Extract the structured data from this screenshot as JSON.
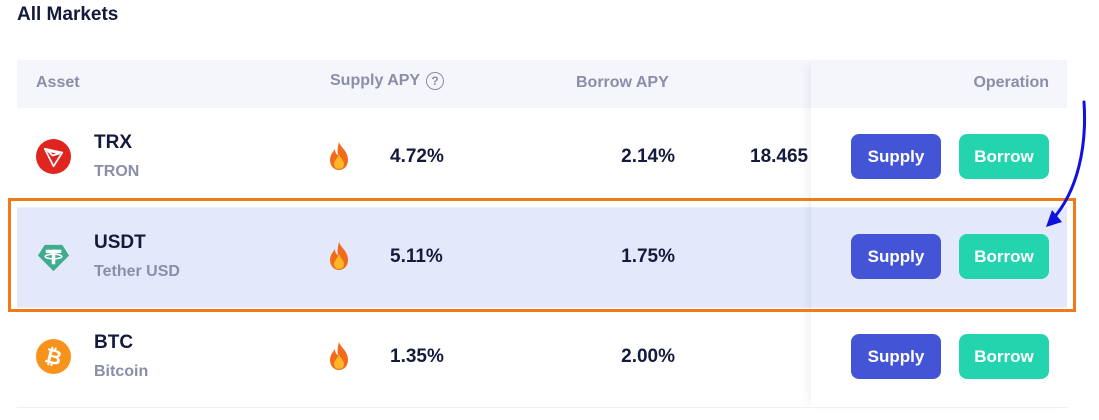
{
  "page": {
    "title": "All Markets"
  },
  "table": {
    "headers": {
      "asset": "Asset",
      "supply_apy": "Supply APY",
      "borrow_apy": "Borrow APY",
      "operation": "Operation"
    },
    "rows": [
      {
        "symbol": "TRX",
        "name": "TRON",
        "icon": "tron-icon",
        "supply_apy": "4.72%",
        "borrow_apy": "2.14%",
        "extra": "18.465",
        "supply_label": "Supply",
        "borrow_label": "Borrow",
        "highlighted": false
      },
      {
        "symbol": "USDT",
        "name": "Tether USD",
        "icon": "tether-icon",
        "supply_apy": "5.11%",
        "borrow_apy": "1.75%",
        "extra": "",
        "supply_label": "Supply",
        "borrow_label": "Borrow",
        "highlighted": true
      },
      {
        "symbol": "BTC",
        "name": "Bitcoin",
        "icon": "bitcoin-icon",
        "supply_apy": "1.35%",
        "borrow_apy": "2.00%",
        "extra": "",
        "supply_label": "Supply",
        "borrow_label": "Borrow",
        "highlighted": false
      }
    ]
  },
  "colors": {
    "supply_button": "#4355d6",
    "borrow_button": "#23d4ae",
    "highlight_row": "#e3e9fb",
    "outline": "#f07b18",
    "arrow": "#1010e0"
  }
}
